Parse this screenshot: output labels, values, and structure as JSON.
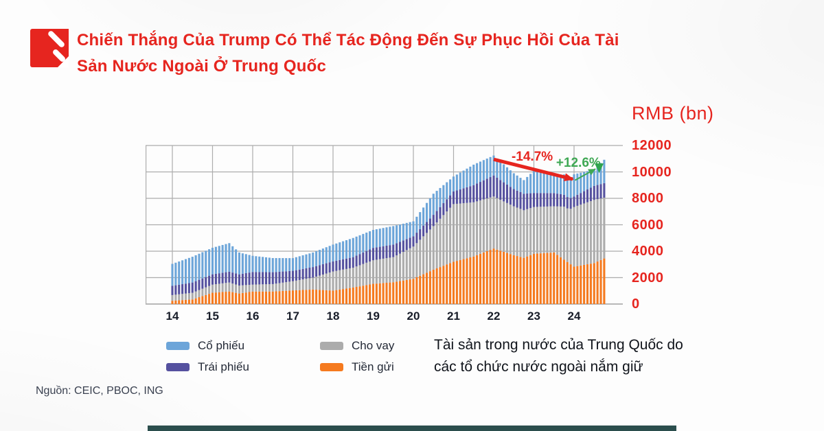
{
  "header": {
    "title_line1": "Chiến Thắng Của Trump Có Thể Tác Động Đến Sự Phục Hồi Của Tài",
    "title_line2": "Sản Nước Ngoài Ở Trung Quốc",
    "brand_color": "#e6251f"
  },
  "legend": {
    "items": [
      {
        "label": "Cổ phiếu",
        "color": "#6ca5d9"
      },
      {
        "label": "Cho vay",
        "color": "#acacac"
      },
      {
        "label": "Trái phiếu",
        "color": "#55519f"
      },
      {
        "label": "Tiền gửi",
        "color": "#f57a1f"
      }
    ]
  },
  "caption": {
    "line1": "Tài sản trong nước của Trung Quốc do",
    "line2": "các tổ chức nước ngoài nắm giữ"
  },
  "source": "Nguồn: CEIC, PBOC, ING",
  "chart_data": {
    "type": "bar",
    "stacked": true,
    "unit_label": "RMB (bn)",
    "x_monthly_start": "2014-01",
    "x_monthly_end": "2024-10",
    "x_tick_labels": [
      "14",
      "15",
      "16",
      "17",
      "18",
      "19",
      "20",
      "21",
      "22",
      "23",
      "24"
    ],
    "y_ticks": [
      0,
      2000,
      4000,
      6000,
      8000,
      10000,
      12000
    ],
    "ylim": [
      0,
      12000
    ],
    "grid": true,
    "legend_position": "bottom",
    "series": [
      {
        "name": "Tiền gửi",
        "color": "#f57a1f",
        "values": [
          250,
          267,
          283,
          300,
          317,
          333,
          350,
          434,
          518,
          603,
          687,
          771,
          855,
          874,
          893,
          912,
          931,
          950,
          900,
          850,
          800,
          836,
          873,
          909,
          945,
          946,
          947,
          948,
          948,
          949,
          950,
          963,
          977,
          990,
          1003,
          1017,
          1030,
          1042,
          1053,
          1065,
          1077,
          1088,
          1100,
          1087,
          1073,
          1060,
          1047,
          1033,
          1020,
          1058,
          1097,
          1135,
          1173,
          1212,
          1250,
          1297,
          1343,
          1390,
          1437,
          1483,
          1530,
          1550,
          1570,
          1590,
          1610,
          1630,
          1650,
          1693,
          1737,
          1780,
          1823,
          1867,
          1910,
          2025,
          2140,
          2255,
          2370,
          2485,
          2600,
          2700,
          2800,
          2900,
          3000,
          3100,
          3200,
          3267,
          3333,
          3400,
          3467,
          3533,
          3600,
          3700,
          3800,
          3900,
          4000,
          4100,
          4200,
          4117,
          4033,
          3950,
          3867,
          3783,
          3700,
          3633,
          3567,
          3500,
          3602,
          3703,
          3805,
          3821,
          3837,
          3853,
          3868,
          3884,
          3900,
          3722,
          3543,
          3365,
          3187,
          3008,
          2830,
          2875,
          2920,
          2965,
          3010,
          3055,
          3100,
          3217,
          3333,
          3450
        ]
      },
      {
        "name": "Cho vay",
        "color": "#acacac",
        "values": [
          430,
          442,
          453,
          465,
          477,
          488,
          500,
          519,
          538,
          558,
          577,
          596,
          615,
          628,
          641,
          654,
          667,
          680,
          653,
          627,
          600,
          581,
          563,
          544,
          525,
          531,
          537,
          543,
          548,
          554,
          560,
          583,
          607,
          630,
          653,
          677,
          700,
          733,
          767,
          800,
          833,
          867,
          900,
          991,
          1082,
          1173,
          1263,
          1354,
          1445,
          1454,
          1463,
          1473,
          1482,
          1491,
          1500,
          1548,
          1595,
          1643,
          1690,
          1738,
          1785,
          1804,
          1823,
          1843,
          1862,
          1881,
          1900,
          1990,
          2080,
          2170,
          2260,
          2350,
          2440,
          2583,
          2727,
          2870,
          3013,
          3157,
          3300,
          3478,
          3655,
          3833,
          4010,
          4188,
          4365,
          4321,
          4277,
          4233,
          4188,
          4144,
          4100,
          4073,
          4047,
          4020,
          3993,
          3967,
          3940,
          3900,
          3860,
          3820,
          3780,
          3740,
          3700,
          3667,
          3633,
          3600,
          3580,
          3560,
          3540,
          3533,
          3527,
          3520,
          3513,
          3507,
          3500,
          3669,
          3838,
          4008,
          4050,
          4200,
          4515,
          4559,
          4603,
          4648,
          4692,
          4736,
          4780,
          4720,
          4660,
          4600
        ]
      },
      {
        "name": "Trái phiếu",
        "color": "#55519f",
        "values": [
          700,
          713,
          727,
          740,
          753,
          767,
          780,
          780,
          780,
          780,
          780,
          780,
          780,
          788,
          796,
          804,
          812,
          820,
          830,
          840,
          850,
          876,
          903,
          929,
          955,
          946,
          937,
          928,
          918,
          909,
          900,
          881,
          862,
          843,
          823,
          804,
          785,
          788,
          790,
          793,
          795,
          798,
          800,
          794,
          788,
          783,
          777,
          771,
          765,
          771,
          777,
          783,
          788,
          794,
          800,
          823,
          845,
          868,
          890,
          913,
          935,
          938,
          940,
          943,
          945,
          948,
          950,
          922,
          893,
          865,
          837,
          808,
          780,
          792,
          803,
          815,
          827,
          838,
          850,
          868,
          885,
          903,
          920,
          938,
          955,
          1013,
          1070,
          1128,
          1185,
          1243,
          1300,
          1348,
          1397,
          1445,
          1493,
          1542,
          1590,
          1542,
          1493,
          1445,
          1397,
          1348,
          1300,
          1283,
          1267,
          1250,
          1187,
          1123,
          1060,
          1050,
          1040,
          1030,
          1020,
          1010,
          1000,
          966,
          932,
          898,
          863,
          829,
          795,
          839,
          883,
          928,
          972,
          1016,
          1060,
          1073,
          1087,
          1100
        ]
      },
      {
        "name": "Cổ phiếu",
        "color": "#6ca5d9",
        "values": [
          1660,
          1708,
          1757,
          1805,
          1853,
          1902,
          1950,
          1960,
          1970,
          1980,
          1990,
          2000,
          2010,
          2040,
          2070,
          2100,
          2130,
          2160,
          1990,
          1820,
          1650,
          1544,
          1438,
          1331,
          1225,
          1199,
          1173,
          1148,
          1122,
          1096,
          1070,
          1052,
          1033,
          1015,
          997,
          978,
          960,
          983,
          1007,
          1030,
          1053,
          1077,
          1100,
          1128,
          1157,
          1185,
          1213,
          1242,
          1270,
          1300,
          1330,
          1360,
          1390,
          1420,
          1450,
          1435,
          1420,
          1405,
          1390,
          1375,
          1360,
          1367,
          1373,
          1380,
          1387,
          1393,
          1400,
          1355,
          1310,
          1265,
          1220,
          1175,
          1130,
          1208,
          1287,
          1365,
          1443,
          1522,
          1600,
          1522,
          1443,
          1365,
          1287,
          1208,
          1130,
          1200,
          1270,
          1340,
          1410,
          1480,
          1550,
          1543,
          1537,
          1530,
          1523,
          1517,
          1510,
          1458,
          1407,
          1355,
          1303,
          1252,
          1200,
          1143,
          1087,
          1030,
          1248,
          1467,
          1685,
          1638,
          1590,
          1543,
          1495,
          1448,
          1400,
          1447,
          1493,
          1540,
          1450,
          1500,
          1680,
          1607,
          1533,
          1460,
          1387,
          1313,
          1240,
          1417,
          1593,
          1770
        ]
      }
    ],
    "annotations": [
      {
        "label": "-14.7%",
        "color": "#e6251f",
        "width": 5,
        "from": {
          "i": 96,
          "v": 10950
        },
        "to": {
          "i": 119.6,
          "v": 9450
        },
        "label_pos": {
          "i": 107.5,
          "v": 11170
        }
      },
      {
        "label": "+12.6%",
        "color": "#3fa854",
        "width": 2,
        "from": {
          "i": 120.3,
          "v": 9370
        },
        "to": {
          "i": 126.4,
          "v": 10230
        },
        "label_pos": {
          "i": 121.3,
          "v": 10700
        }
      }
    ],
    "end_marker": {
      "i": 127.5,
      "v_top": 10640,
      "v_bottom": 9915,
      "half_w": 6.5,
      "color": "#2fa44e"
    },
    "colors": {
      "grid": "#adadad",
      "baseline": "#8f8f8f",
      "axis_text": "#171c28",
      "tick_text": "#e6251f"
    }
  }
}
